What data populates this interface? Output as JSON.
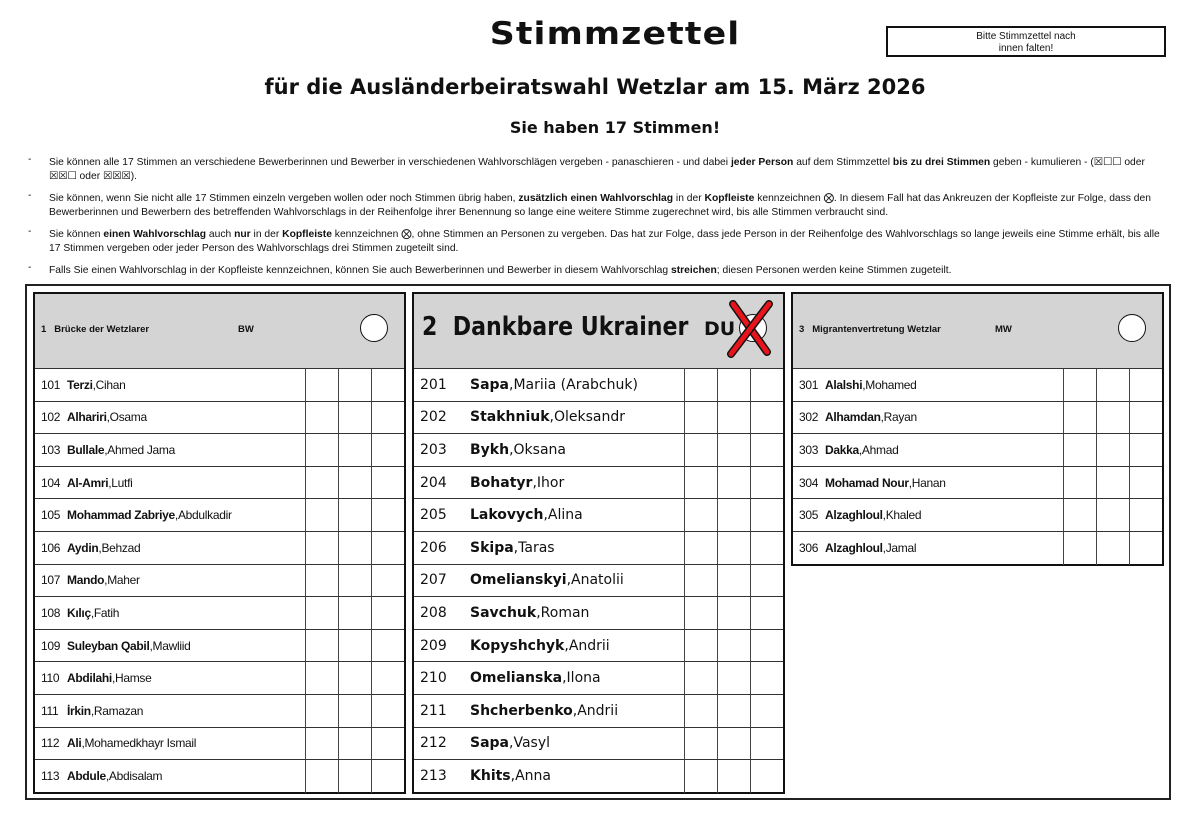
{
  "header": {
    "title": "Stimmzettel",
    "subtitle": "für die Ausländerbeiratswahl Wetzlar am 15. März 2026",
    "votes": "Sie haben 17 Stimmen!",
    "fold_notice_line1": "Bitte Stimmzettel nach",
    "fold_notice_line2": "innen falten!"
  },
  "instructions": [
    [
      {
        "t": "Sie können alle 17 Stimmen an verschiedene Bewerberinnen und Bewerber in verschiedenen Wahlvorschlägen vergeben - panaschieren - und dabei "
      },
      {
        "t": "jeder Person",
        "b": true
      },
      {
        "t": " auf dem Stimmzettel "
      },
      {
        "t": "bis zu drei Stimmen",
        "b": true
      },
      {
        "t": " geben - kumulieren - (☒☐☐ oder ☒☒☐ oder ☒☒☒)."
      }
    ],
    [
      {
        "t": "Sie können, wenn Sie nicht alle 17 Stimmen einzeln vergeben wollen oder noch Stimmen übrig haben, "
      },
      {
        "t": "zusätzlich einen Wahlvorschlag",
        "b": true
      },
      {
        "t": " in der "
      },
      {
        "t": "Kopfleiste",
        "b": true
      },
      {
        "t": " kennzeichnen ⨂. In diesem Fall hat das Ankreuzen der Kopfleiste zur Folge, dass den Bewerberinnen und Bewerbern des betreffenden Wahlvorschlags in der Reihenfolge ihrer Benennung so lange eine weitere Stimme zugerechnet wird, bis alle Stimmen verbraucht sind."
      }
    ],
    [
      {
        "t": "Sie können "
      },
      {
        "t": "einen Wahlvorschlag",
        "b": true
      },
      {
        "t": " auch "
      },
      {
        "t": "nur",
        "b": true
      },
      {
        "t": " in der "
      },
      {
        "t": "Kopfleiste",
        "b": true
      },
      {
        "t": " kennzeichnen ⨂, ohne Stimmen an Personen zu vergeben. Das hat zur Folge, dass jede Person in der Reihenfolge des Wahlvorschlags so lange jeweils eine Stimme erhält, bis alle 17 Stimmen vergeben oder jeder Person des Wahlvorschlags drei Stimmen zugeteilt sind."
      }
    ],
    [
      {
        "t": "Falls Sie einen Wahlvorschlag in der Kopfleiste kennzeichnen, können Sie auch Bewerberinnen und Bewerber in diesem Wahlvorschlag "
      },
      {
        "t": "streichen",
        "b": true
      },
      {
        "t": "; diesen Personen werden keine Stimmen zugeteilt."
      }
    ]
  ],
  "bullet": "-",
  "lists": [
    {
      "number": "1",
      "name": "Brücke der Wetzlarer",
      "abbr": "BW",
      "marked": false,
      "candidates": [
        {
          "no": "101",
          "last": "Terzi",
          "first": "Cihan"
        },
        {
          "no": "102",
          "last": "Alhariri",
          "first": "Osama"
        },
        {
          "no": "103",
          "last": "Bullale",
          "first": "Ahmed Jama"
        },
        {
          "no": "104",
          "last": "Al-Amri",
          "first": "Lutfi"
        },
        {
          "no": "105",
          "last": "Mohammad Zabriye",
          "first": "Abdulkadir"
        },
        {
          "no": "106",
          "last": "Aydin",
          "first": "Behzad"
        },
        {
          "no": "107",
          "last": "Mando",
          "first": "Maher"
        },
        {
          "no": "108",
          "last": "Kılıç",
          "first": "Fatih"
        },
        {
          "no": "109",
          "last": "Suleyban Qabil",
          "first": "Mawliid"
        },
        {
          "no": "110",
          "last": "Abdilahi",
          "first": "Hamse"
        },
        {
          "no": "111",
          "last": "İrkin",
          "first": "Ramazan"
        },
        {
          "no": "112",
          "last": "Ali",
          "first": "Mohamedkhayr Ismail"
        },
        {
          "no": "113",
          "last": "Abdule",
          "first": "Abdisalam"
        }
      ]
    },
    {
      "number": "2",
      "name": "Dankbare Ukrainer",
      "abbr": "DU",
      "marked": true,
      "mark_color": "#e8141c",
      "candidates": [
        {
          "no": "201",
          "last": "Sapa",
          "first": "Mariia (Arabchuk)"
        },
        {
          "no": "202",
          "last": "Stakhniuk",
          "first": "Oleksandr"
        },
        {
          "no": "203",
          "last": "Bykh",
          "first": "Oksana"
        },
        {
          "no": "204",
          "last": "Bohatyr",
          "first": "Ihor"
        },
        {
          "no": "205",
          "last": "Lakovych",
          "first": "Alina"
        },
        {
          "no": "206",
          "last": "Skipa",
          "first": "Taras"
        },
        {
          "no": "207",
          "last": "Omelianskyi",
          "first": "Anatolii"
        },
        {
          "no": "208",
          "last": "Savchuk",
          "first": "Roman"
        },
        {
          "no": "209",
          "last": "Kopyshchyk",
          "first": "Andrii"
        },
        {
          "no": "210",
          "last": "Omelianska",
          "first": "Ilona"
        },
        {
          "no": "211",
          "last": "Shcherbenko",
          "first": "Andrii"
        },
        {
          "no": "212",
          "last": "Sapa",
          "first": "Vasyl"
        },
        {
          "no": "213",
          "last": "Khits",
          "first": "Anna"
        }
      ]
    },
    {
      "number": "3",
      "name": "Migrantenvertretung Wetzlar",
      "abbr": "MW",
      "marked": false,
      "candidates": [
        {
          "no": "301",
          "last": "Alalshi",
          "first": "Mohamed"
        },
        {
          "no": "302",
          "last": "Alhamdan",
          "first": "Rayan"
        },
        {
          "no": "303",
          "last": "Dakka",
          "first": "Ahmad"
        },
        {
          "no": "304",
          "last": "Mohamad Nour",
          "first": "Hanan"
        },
        {
          "no": "305",
          "last": "Alzaghloul",
          "first": "Khaled"
        },
        {
          "no": "306",
          "last": "Alzaghloul",
          "first": "Jamal"
        }
      ]
    }
  ]
}
